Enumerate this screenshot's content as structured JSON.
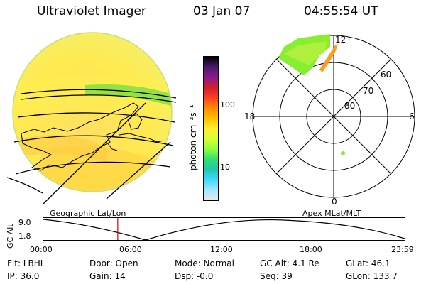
{
  "header": {
    "title": "Ultraviolet Imager",
    "date": "03 Jan 07",
    "time": "04:55:54 UT"
  },
  "colorbar": {
    "unit_label": "photon cm⁻²s⁻¹",
    "ticks": [
      "100",
      "10"
    ],
    "colors": [
      "#000000",
      "#4b1a6e",
      "#8b1a8b",
      "#d0202a",
      "#ff4020",
      "#ff8c00",
      "#ffc000",
      "#ffee30",
      "#d8ff30",
      "#90ff40",
      "#30e070",
      "#20c8b0",
      "#40d8ff",
      "#a0e8ff",
      "#e8e8e8"
    ]
  },
  "polar_plot": {
    "lat_labels": [
      "60",
      "70",
      "80"
    ],
    "mlt_labels": {
      "top": "12",
      "left": "18",
      "right": "6",
      "bottom": "0"
    }
  },
  "timeline": {
    "left_title": "Geographic Lat/Lon",
    "right_title": "Apex MLat/MLT",
    "y_axis_label": "GC Alt",
    "y_ticks": [
      "9.0",
      "1.8"
    ],
    "x_ticks": [
      "00:00",
      "06:00",
      "12:00",
      "18:00",
      "23:59"
    ],
    "current_time_fraction": 0.206,
    "marker_color": "#e00000"
  },
  "info": {
    "row1": {
      "filter": "Flt: LBHL",
      "door": "Door: Open",
      "mode": "Mode: Normal",
      "gc_alt": "GC Alt: 4.1 Re",
      "glat": "GLat:  46.1"
    },
    "row2": {
      "ip": "IP: 36.0",
      "gain": "Gain: 14",
      "dsp": "Dsp:   -0.0",
      "seq": "Seq: 39",
      "glon": "GLon: 133.7"
    }
  }
}
